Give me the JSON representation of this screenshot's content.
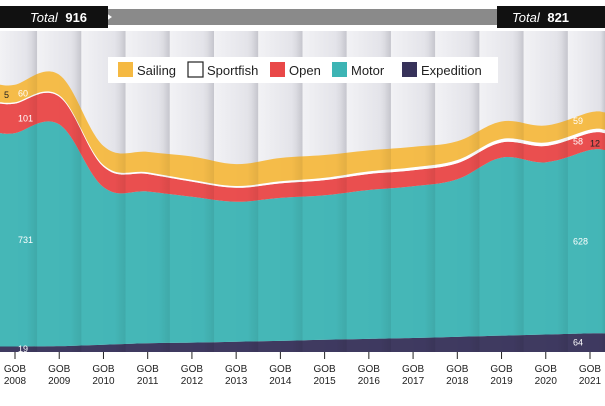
{
  "chart_data": {
    "type": "area",
    "stacked": true,
    "x": [
      "2008",
      "2009",
      "2010",
      "2011",
      "2012",
      "2013",
      "2014",
      "2015",
      "2016",
      "2017",
      "2018",
      "2019",
      "2020",
      "2021"
    ],
    "tick_prefix": "GOB",
    "series": [
      {
        "name": "Expedition",
        "color": "#37325a",
        "values": [
          19,
          20,
          25,
          30,
          32,
          35,
          38,
          42,
          45,
          48,
          52,
          56,
          60,
          64
        ]
      },
      {
        "name": "Motor",
        "color": "#3db4b4",
        "values": [
          731,
          760,
          540,
          520,
          500,
          480,
          490,
          495,
          510,
          520,
          540,
          610,
          590,
          628
        ]
      },
      {
        "name": "Open",
        "color": "#e94848",
        "values": [
          101,
          95,
          70,
          60,
          52,
          48,
          50,
          52,
          55,
          55,
          55,
          52,
          56,
          58
        ]
      },
      {
        "name": "Sportfish",
        "color": "#ffffff",
        "values": [
          5,
          5,
          6,
          6,
          6,
          6,
          7,
          8,
          9,
          10,
          11,
          12,
          12,
          12
        ]
      },
      {
        "name": "Sailing",
        "color": "#f5b942",
        "values": [
          60,
          70,
          65,
          70,
          80,
          75,
          80,
          78,
          72,
          70,
          64,
          60,
          58,
          59
        ]
      }
    ],
    "legend_order": [
      "Sailing",
      "Sportfish",
      "Open",
      "Motor",
      "Expedition"
    ],
    "legend_position": "top-center",
    "totals": {
      "start_label": "Total",
      "start_value": "916",
      "end_label": "Total",
      "end_value": "821"
    },
    "start_labels": {
      "Sportfish": "5",
      "Sailing": "60",
      "Open": "101",
      "Motor": "731",
      "Expedition": "19"
    },
    "end_labels": {
      "Sportfish": "12",
      "Sailing": "59",
      "Open": "58",
      "Motor": "628",
      "Expedition": "64"
    },
    "ylim": [
      0,
      1100
    ],
    "grid": false,
    "title": "",
    "xlabel": "",
    "ylabel": ""
  }
}
